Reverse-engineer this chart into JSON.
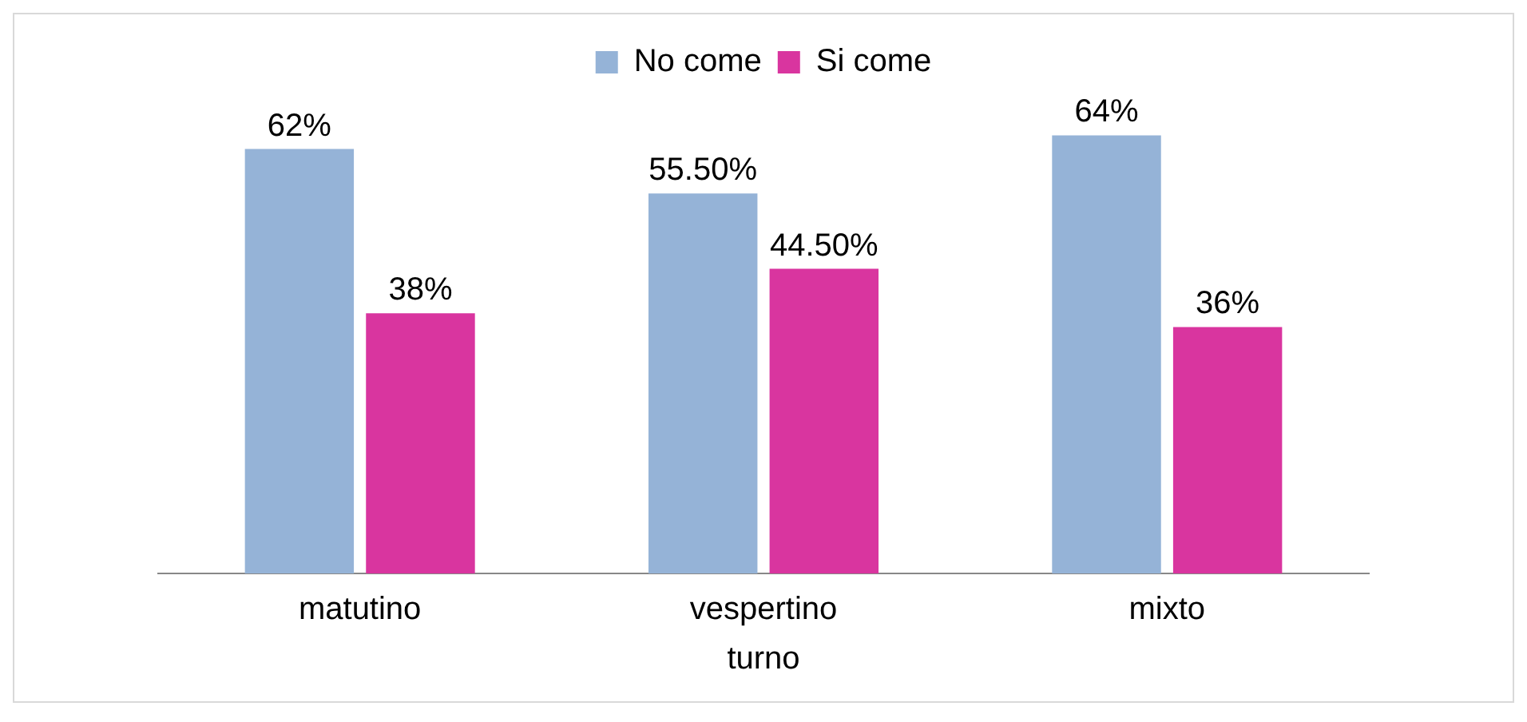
{
  "chart_data": {
    "type": "bar",
    "xlabel": "turno",
    "categories": [
      "matutino",
      "vespertino",
      "mixto"
    ],
    "series": [
      {
        "name": "No come",
        "color": "#95b3d7",
        "values": [
          62,
          55.5,
          64
        ],
        "value_labels": [
          "62%",
          "55.50%",
          "64%"
        ]
      },
      {
        "name": "Si come",
        "color": "#d9359f",
        "values": [
          38,
          44.5,
          36
        ],
        "value_labels": [
          "38%",
          "44.50%",
          "36%"
        ]
      }
    ],
    "legend": "top",
    "grid": false
  }
}
